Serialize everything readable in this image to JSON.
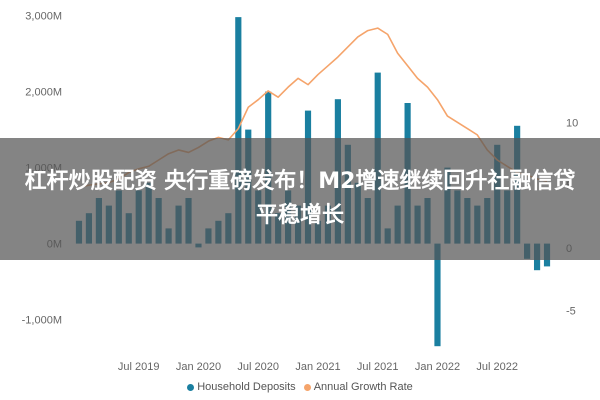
{
  "banner": {
    "title": "杠杆炒股配资 央行重磅发布！M2增速继续回升社融信贷平稳增长"
  },
  "chart_data": {
    "type": "bar",
    "title": "",
    "xlabel": "",
    "ylabel": "",
    "ylim": [
      -1400,
      3100
    ],
    "y2lim": [
      -8.125,
      19.1
    ],
    "yticks": [
      {
        "value": 3000,
        "label": "3,000M"
      },
      {
        "value": 2000,
        "label": "2,000M"
      },
      {
        "value": 1000,
        "label": "1,000M"
      },
      {
        "value": 0,
        "label": "0M"
      },
      {
        "value": -1000,
        "label": "-1,000M"
      }
    ],
    "y2ticks": [
      {
        "value": 10,
        "label": "10"
      },
      {
        "value": 5,
        "label": "5"
      },
      {
        "value": 0,
        "label": "0"
      },
      {
        "value": -5,
        "label": "-5"
      }
    ],
    "xticks": [
      {
        "index": 6,
        "label": "Jul 2019"
      },
      {
        "index": 12,
        "label": "Jan 2020"
      },
      {
        "index": 18,
        "label": "Jul 2020"
      },
      {
        "index": 24,
        "label": "Jan 2021"
      },
      {
        "index": 30,
        "label": "Jul 2021"
      },
      {
        "index": 36,
        "label": "Jan 2022"
      },
      {
        "index": 42,
        "label": "Jul 2022"
      }
    ],
    "grid": false,
    "legend_position": "bottom",
    "series": [
      {
        "name": "Household Deposits",
        "kind": "bar",
        "axis": "left",
        "color": "#1a7fa0",
        "values": [
          300,
          400,
          600,
          500,
          700,
          400,
          700,
          800,
          600,
          200,
          500,
          600,
          -50,
          200,
          300,
          400,
          2980,
          1500,
          700,
          2000,
          400,
          700,
          500,
          1750,
          300,
          500,
          1900,
          1300,
          800,
          600,
          2250,
          200,
          500,
          1850,
          500,
          600,
          -1350,
          1000,
          700,
          600,
          500,
          600,
          1300,
          700,
          1550,
          -200,
          -350,
          -300
        ]
      },
      {
        "name": "Annual Growth Rate",
        "kind": "line",
        "axis": "right",
        "color": "#f5a46b",
        "values": [
          4.8,
          5.0,
          5.1,
          5.2,
          5.5,
          6.0,
          6.3,
          6.5,
          7.0,
          7.5,
          7.8,
          7.6,
          8.0,
          8.5,
          8.8,
          8.6,
          9.5,
          11.2,
          11.8,
          12.5,
          12.0,
          12.8,
          13.5,
          13.0,
          13.8,
          14.5,
          15.2,
          16.0,
          16.8,
          17.3,
          17.5,
          17.0,
          15.5,
          14.5,
          13.5,
          12.8,
          11.8,
          10.5,
          10.0,
          9.5,
          9.0,
          7.8,
          7.0,
          6.5,
          6.0,
          5.8,
          5.5,
          5.3
        ]
      }
    ]
  }
}
